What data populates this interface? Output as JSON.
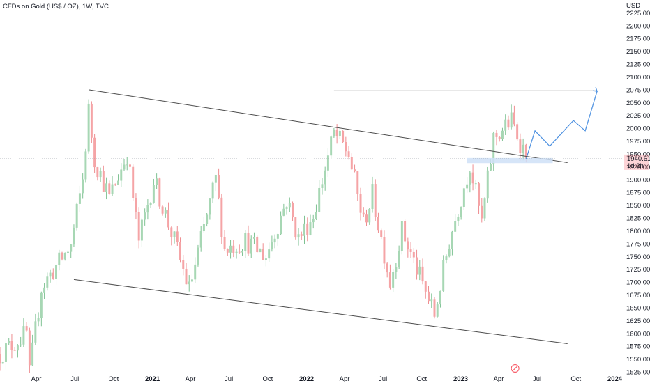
{
  "header": {
    "title": "CFDs on Gold (US$ / OZ), 1W, TVC"
  },
  "price_axis": {
    "currency": "USD",
    "last_price": "1940.61",
    "countdown": "1d 2h",
    "last_price_color": "#f7525f"
  },
  "footer": {
    "settings_icon": "gear-icon"
  },
  "colors": {
    "up_body": "#a7d7b4",
    "down_body": "#f5a4a6",
    "up_wick": "#7fc293",
    "down_wick": "#ee8d90",
    "trendline": "#4b4b4b",
    "projection": "#4a8fe0",
    "zone": "#cfe0f7",
    "price_line": "#9aa0a6"
  },
  "chart_data": {
    "type": "candlestick",
    "title": "CFDs on Gold (US$ / OZ), 1W, TVC",
    "interval": "1W",
    "ylim": [
      1525,
      2250
    ],
    "yticks": [
      1525,
      1550,
      1575,
      1600,
      1625,
      1650,
      1675,
      1700,
      1725,
      1750,
      1775,
      1800,
      1825,
      1850,
      1875,
      1900,
      1925,
      1950,
      1975,
      2000,
      2025,
      2050,
      2075,
      2100,
      2125,
      2150,
      2175,
      2200,
      2225
    ],
    "ytick_labels": [
      "1525.00",
      "1550.00",
      "1575.00",
      "1600.00",
      "1625.00",
      "1650.00",
      "1675.00",
      "1700.00",
      "1725.00",
      "1750.00",
      "1775.00",
      "1800.00",
      "1825.00",
      "1850.00",
      "1875.00",
      "1900.00",
      "1925.00",
      "1950.00",
      "1975.00",
      "2000.00",
      "2025.00",
      "2050.00",
      "2075.00",
      "2100.00",
      "2125.00",
      "2150.00",
      "2175.00",
      "2200.00",
      "2225.00"
    ],
    "xlim": [
      "2020-01-06",
      "2024-01-20"
    ],
    "xticks": [
      {
        "date": "2020-04-01",
        "label": "Apr",
        "bold": false
      },
      {
        "date": "2020-07-01",
        "label": "Jul",
        "bold": false
      },
      {
        "date": "2020-10-01",
        "label": "Oct",
        "bold": false
      },
      {
        "date": "2021-01-01",
        "label": "2021",
        "bold": true
      },
      {
        "date": "2021-04-01",
        "label": "Apr",
        "bold": false
      },
      {
        "date": "2021-07-01",
        "label": "Jul",
        "bold": false
      },
      {
        "date": "2021-10-01",
        "label": "Oct",
        "bold": false
      },
      {
        "date": "2022-01-01",
        "label": "2022",
        "bold": true
      },
      {
        "date": "2022-04-01",
        "label": "Apr",
        "bold": false
      },
      {
        "date": "2022-07-01",
        "label": "Jul",
        "bold": false
      },
      {
        "date": "2022-10-01",
        "label": "Oct",
        "bold": false
      },
      {
        "date": "2023-01-01",
        "label": "2023",
        "bold": true
      },
      {
        "date": "2023-04-01",
        "label": "Apr",
        "bold": false
      },
      {
        "date": "2023-07-01",
        "label": "Jul",
        "bold": false
      },
      {
        "date": "2023-10-01",
        "label": "Oct",
        "bold": false
      },
      {
        "date": "2024-01-01",
        "label": "2024",
        "bold": true
      }
    ],
    "last_price": 1940.61,
    "anchor_points": [
      {
        "date": "2020-01-06",
        "close": 1560
      },
      {
        "date": "2020-03-09",
        "close": 1600
      },
      {
        "date": "2020-03-16",
        "close": 1520
      },
      {
        "date": "2020-04-13",
        "close": 1690
      },
      {
        "date": "2020-05-18",
        "close": 1730
      },
      {
        "date": "2020-06-22",
        "close": 1770
      },
      {
        "date": "2020-07-20",
        "close": 1900
      },
      {
        "date": "2020-08-03",
        "close": 2035
      },
      {
        "date": "2020-08-17",
        "close": 1940
      },
      {
        "date": "2020-09-21",
        "close": 1865
      },
      {
        "date": "2020-11-02",
        "close": 1950
      },
      {
        "date": "2020-11-30",
        "close": 1780
      },
      {
        "date": "2021-01-04",
        "close": 1900
      },
      {
        "date": "2021-02-22",
        "close": 1780
      },
      {
        "date": "2021-03-29",
        "close": 1685
      },
      {
        "date": "2021-05-31",
        "close": 1900
      },
      {
        "date": "2021-06-21",
        "close": 1765
      },
      {
        "date": "2021-08-09",
        "close": 1780
      },
      {
        "date": "2021-09-27",
        "close": 1750
      },
      {
        "date": "2021-11-15",
        "close": 1860
      },
      {
        "date": "2021-12-13",
        "close": 1785
      },
      {
        "date": "2022-01-17",
        "close": 1830
      },
      {
        "date": "2022-03-07",
        "close": 1990
      },
      {
        "date": "2022-04-11",
        "close": 1950
      },
      {
        "date": "2022-05-16",
        "close": 1815
      },
      {
        "date": "2022-06-06",
        "close": 1870
      },
      {
        "date": "2022-07-18",
        "close": 1700
      },
      {
        "date": "2022-08-15",
        "close": 1800
      },
      {
        "date": "2022-10-31",
        "close": 1635
      },
      {
        "date": "2022-12-05",
        "close": 1780
      },
      {
        "date": "2023-01-23",
        "close": 1930
      },
      {
        "date": "2023-02-20",
        "close": 1815
      },
      {
        "date": "2023-03-20",
        "close": 1980
      },
      {
        "date": "2023-05-01",
        "close": 2015
      },
      {
        "date": "2023-05-29",
        "close": 1960
      },
      {
        "date": "2023-06-05",
        "close": 1940.61
      }
    ],
    "trendlines": [
      {
        "from": {
          "date": "2020-08-03",
          "price": 2075
        },
        "to": {
          "date": "2023-09-11",
          "price": 1933
        }
      },
      {
        "from": {
          "date": "2020-06-29",
          "price": 1705
        },
        "to": {
          "date": "2023-09-11",
          "price": 1580
        }
      },
      {
        "from": {
          "date": "2022-03-07",
          "price": 2073
        },
        "to": {
          "date": "2023-11-20",
          "price": 2073
        }
      }
    ],
    "zone": {
      "from": "2023-01-16",
      "to": "2023-08-07",
      "high": 1942,
      "low": 1932
    },
    "projection": [
      {
        "date": "2023-06-05",
        "price": 1940
      },
      {
        "date": "2023-06-26",
        "price": 1995
      },
      {
        "date": "2023-07-31",
        "price": 1965
      },
      {
        "date": "2023-09-25",
        "price": 2015
      },
      {
        "date": "2023-10-23",
        "price": 1995
      },
      {
        "date": "2023-11-20",
        "price": 2072
      }
    ]
  }
}
